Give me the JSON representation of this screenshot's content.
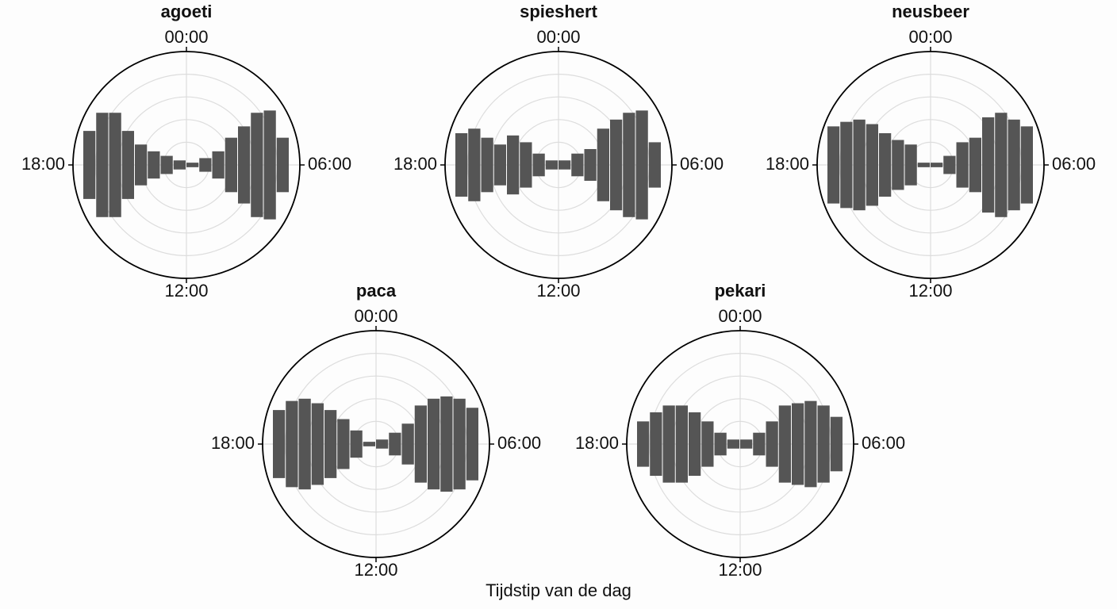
{
  "xlabel": "Tijdstip van de dag",
  "chart_data": [
    {
      "type": "bar",
      "title": "agoeti",
      "angle_labels": [
        "00:00",
        "06:00",
        "12:00",
        "18:00"
      ],
      "color": "#555555",
      "ylim": [
        0,
        5
      ],
      "yticks": [
        1,
        2,
        3,
        4
      ],
      "grid": true,
      "values": [
        1.5,
        2.3,
        2.3,
        1.5,
        0.9,
        0.6,
        0.4,
        0.2,
        0.1,
        0.3,
        0.6,
        1.2,
        1.7,
        2.3,
        2.4,
        1.2
      ]
    },
    {
      "type": "bar",
      "title": "spieshert",
      "angle_labels": [
        "00:00",
        "06:00",
        "12:00",
        "18:00"
      ],
      "color": "#555555",
      "ylim": [
        0,
        5
      ],
      "yticks": [
        1,
        2,
        3,
        4
      ],
      "grid": true,
      "values": [
        1.4,
        1.6,
        1.2,
        0.9,
        1.3,
        1.0,
        0.5,
        0.2,
        0.2,
        0.5,
        0.7,
        1.6,
        2.0,
        2.3,
        2.4,
        1.0
      ]
    },
    {
      "type": "bar",
      "title": "neusbeer",
      "angle_labels": [
        "00:00",
        "06:00",
        "12:00",
        "18:00"
      ],
      "color": "#555555",
      "ylim": [
        0,
        5
      ],
      "yticks": [
        1,
        2,
        3,
        4
      ],
      "grid": true,
      "values": [
        1.7,
        1.9,
        2.0,
        1.8,
        1.4,
        1.1,
        0.9,
        0.1,
        0.1,
        0.4,
        1.0,
        1.2,
        2.1,
        2.3,
        2.0,
        1.7
      ]
    },
    {
      "type": "bar",
      "title": "paca",
      "angle_labels": [
        "00:00",
        "06:00",
        "12:00",
        "18:00"
      ],
      "color": "#555555",
      "ylim": [
        0,
        5
      ],
      "yticks": [
        1,
        2,
        3,
        4
      ],
      "grid": true,
      "values": [
        1.5,
        1.9,
        2.0,
        1.8,
        1.5,
        1.1,
        0.6,
        0.1,
        0.2,
        0.5,
        0.9,
        1.7,
        2.0,
        2.1,
        2.0,
        1.6
      ]
    },
    {
      "type": "bar",
      "title": "pekari",
      "angle_labels": [
        "00:00",
        "06:00",
        "12:00",
        "18:00"
      ],
      "color": "#555555",
      "ylim": [
        0,
        5
      ],
      "yticks": [
        1,
        2,
        3,
        4
      ],
      "grid": true,
      "values": [
        1.0,
        1.4,
        1.7,
        1.7,
        1.4,
        1.0,
        0.5,
        0.2,
        0.2,
        0.5,
        1.0,
        1.7,
        1.8,
        1.9,
        1.7,
        1.2
      ]
    }
  ]
}
